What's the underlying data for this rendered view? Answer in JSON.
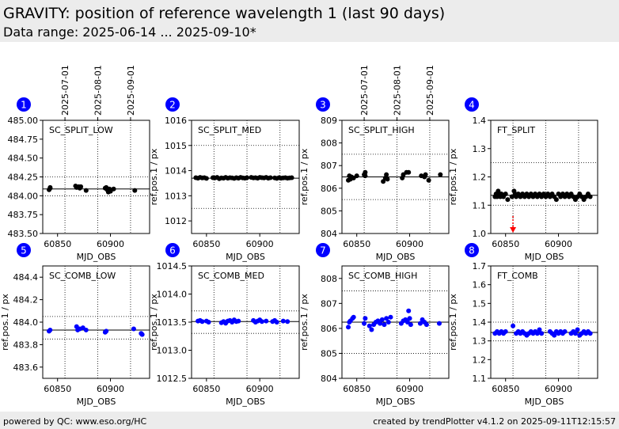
{
  "header": {
    "title": "GRAVITY: position of reference wavelength 1 (last 90 days)",
    "subtitle": "Data range: 2025-06-14 ... 2025-09-10*"
  },
  "footer": {
    "left": "powered by QC: www.eso.org/HC",
    "right": "created by trendPlotter v4.1.2 on 2025-09-11T12:15:57"
  },
  "date_axis": {
    "labels": [
      "2025-07-01",
      "2025-08-01",
      "2025-09-01"
    ],
    "mjd": [
      60857,
      60888,
      60919
    ]
  },
  "colors": {
    "black_points": "#000000",
    "blue_points": "#0000ff",
    "badge": "#0000ff",
    "outlier_arrow": "#ff0000"
  },
  "chart_data": [
    {
      "type": "scatter",
      "badge": "1",
      "label": "SC_SPLIT_LOW",
      "xlabel": "MJD_OBS",
      "ylabel": "",
      "xlim": [
        60836,
        60937
      ],
      "ylim": [
        483.5,
        485.0
      ],
      "yticks": [
        "483.50",
        "483.75",
        "484.00",
        "484.25",
        "484.50",
        "484.75",
        "485.00"
      ],
      "yticks_val": [
        483.5,
        483.75,
        484.0,
        484.25,
        484.5,
        484.75,
        485.0
      ],
      "xticks": [
        "60850",
        "60900"
      ],
      "xticks_val": [
        60850,
        60900
      ],
      "hlines_dotted": [
        484.0,
        484.25
      ],
      "hline_solid": 484.09,
      "point_color": "#000000",
      "show_dates": true,
      "points": [
        [
          60842,
          484.08
        ],
        [
          60843,
          484.11
        ],
        [
          60843,
          484.1
        ],
        [
          60867,
          484.13
        ],
        [
          60868,
          484.11
        ],
        [
          60870,
          484.12
        ],
        [
          60871,
          484.1
        ],
        [
          60872,
          484.12
        ],
        [
          60877,
          484.07
        ],
        [
          60895,
          484.1
        ],
        [
          60896,
          484.11
        ],
        [
          60897,
          484.08
        ],
        [
          60898,
          484.05
        ],
        [
          60899,
          484.07
        ],
        [
          60899,
          484.09
        ],
        [
          60900,
          484.06
        ],
        [
          60903,
          484.09
        ],
        [
          60923,
          484.07
        ]
      ]
    },
    {
      "type": "scatter",
      "badge": "2",
      "label": "SC_SPLIT_MED",
      "xlabel": "MJD_OBS",
      "ylabel": "ref.pos.1 / px",
      "xlim": [
        60836,
        60937
      ],
      "ylim": [
        1011.5,
        1016.0
      ],
      "yticks": [
        "1012",
        "1013",
        "1014",
        "1015",
        "1016"
      ],
      "yticks_val": [
        1012,
        1013,
        1014,
        1015,
        1016
      ],
      "xticks": [
        "60850",
        "60900"
      ],
      "xticks_val": [
        60850,
        60900
      ],
      "hlines_dotted": [
        1012.5,
        1015.0
      ],
      "hline_solid": 1013.7,
      "point_color": "#000000",
      "show_dates": false,
      "points": [
        [
          60840,
          1013.72
        ],
        [
          60842,
          1013.7
        ],
        [
          60844,
          1013.73
        ],
        [
          60846,
          1013.71
        ],
        [
          60848,
          1013.72
        ],
        [
          60850,
          1013.69
        ],
        [
          60856,
          1013.72
        ],
        [
          60858,
          1013.71
        ],
        [
          60860,
          1013.73
        ],
        [
          60862,
          1013.68
        ],
        [
          60864,
          1013.71
        ],
        [
          60866,
          1013.7
        ],
        [
          60868,
          1013.73
        ],
        [
          60870,
          1013.7
        ],
        [
          60872,
          1013.72
        ],
        [
          60874,
          1013.71
        ],
        [
          60876,
          1013.69
        ],
        [
          60878,
          1013.72
        ],
        [
          60880,
          1013.7
        ],
        [
          60882,
          1013.73
        ],
        [
          60884,
          1013.71
        ],
        [
          60886,
          1013.7
        ],
        [
          60888,
          1013.72
        ],
        [
          60892,
          1013.73
        ],
        [
          60894,
          1013.71
        ],
        [
          60896,
          1013.72
        ],
        [
          60898,
          1013.7
        ],
        [
          60900,
          1013.73
        ],
        [
          60902,
          1013.72
        ],
        [
          60904,
          1013.71
        ],
        [
          60906,
          1013.73
        ],
        [
          60908,
          1013.7
        ],
        [
          60910,
          1013.72
        ],
        [
          60914,
          1013.71
        ],
        [
          60916,
          1013.69
        ],
        [
          60918,
          1013.72
        ],
        [
          60920,
          1013.7
        ],
        [
          60922,
          1013.71
        ],
        [
          60924,
          1013.72
        ],
        [
          60926,
          1013.7
        ],
        [
          60928,
          1013.71
        ],
        [
          60930,
          1013.72
        ]
      ]
    },
    {
      "type": "scatter",
      "badge": "3",
      "label": "SC_SPLIT_HIGH",
      "xlabel": "MJD_OBS",
      "ylabel": "ref.pos.1 / px",
      "xlim": [
        60836,
        60937
      ],
      "ylim": [
        804.0,
        809.0
      ],
      "yticks": [
        "804",
        "805",
        "806",
        "807",
        "808",
        "809"
      ],
      "yticks_val": [
        804,
        805,
        806,
        807,
        808,
        809
      ],
      "xticks": [
        "60850",
        "60900"
      ],
      "xticks_val": [
        60850,
        60900
      ],
      "hlines_dotted": [
        805.5,
        807.5
      ],
      "hline_solid": 806.5,
      "point_color": "#000000",
      "show_dates": true,
      "points": [
        [
          60842,
          806.35
        ],
        [
          60843,
          806.55
        ],
        [
          60844,
          806.4
        ],
        [
          60845,
          806.5
        ],
        [
          60847,
          806.45
        ],
        [
          60850,
          806.55
        ],
        [
          60857,
          806.6
        ],
        [
          60858,
          806.7
        ],
        [
          60858,
          806.55
        ],
        [
          60875,
          806.3
        ],
        [
          60877,
          806.45
        ],
        [
          60878,
          806.6
        ],
        [
          60879,
          806.4
        ],
        [
          60893,
          806.45
        ],
        [
          60894,
          806.6
        ],
        [
          60897,
          806.7
        ],
        [
          60899,
          806.7
        ],
        [
          60911,
          806.55
        ],
        [
          60914,
          806.5
        ],
        [
          60915,
          806.6
        ],
        [
          60918,
          806.35
        ],
        [
          60929,
          806.6
        ]
      ]
    },
    {
      "type": "scatter",
      "badge": "4",
      "label": "FT_SPLIT",
      "xlabel": "MJD_OBS",
      "ylabel": "ref.pos.1 / px",
      "xlim": [
        60836,
        60937
      ],
      "ylim": [
        1.0,
        1.4
      ],
      "yticks": [
        "1.0",
        "1.1",
        "1.2",
        "1.3",
        "1.4"
      ],
      "yticks_val": [
        1.0,
        1.1,
        1.2,
        1.3,
        1.4
      ],
      "xticks": [
        "60850",
        "60900"
      ],
      "xticks_val": [
        60850,
        60900
      ],
      "hlines_dotted": [
        1.1,
        1.25
      ],
      "hline_solid": 1.135,
      "point_color": "#000000",
      "show_dates": false,
      "outlier_x": 60857,
      "points": [
        [
          60840,
          1.13
        ],
        [
          60841,
          1.14
        ],
        [
          60842,
          1.13
        ],
        [
          60843,
          1.15
        ],
        [
          60844,
          1.14
        ],
        [
          60845,
          1.13
        ],
        [
          60846,
          1.14
        ],
        [
          60848,
          1.13
        ],
        [
          60850,
          1.14
        ],
        [
          60852,
          1.12
        ],
        [
          60856,
          1.13
        ],
        [
          60858,
          1.15
        ],
        [
          60859,
          1.14
        ],
        [
          60860,
          1.13
        ],
        [
          60862,
          1.14
        ],
        [
          60864,
          1.13
        ],
        [
          60866,
          1.14
        ],
        [
          60868,
          1.13
        ],
        [
          60870,
          1.14
        ],
        [
          60872,
          1.13
        ],
        [
          60874,
          1.14
        ],
        [
          60876,
          1.13
        ],
        [
          60878,
          1.14
        ],
        [
          60880,
          1.13
        ],
        [
          60882,
          1.14
        ],
        [
          60884,
          1.13
        ],
        [
          60886,
          1.14
        ],
        [
          60888,
          1.13
        ],
        [
          60890,
          1.14
        ],
        [
          60892,
          1.13
        ],
        [
          60894,
          1.14
        ],
        [
          60896,
          1.13
        ],
        [
          60898,
          1.12
        ],
        [
          60900,
          1.14
        ],
        [
          60902,
          1.13
        ],
        [
          60904,
          1.14
        ],
        [
          60906,
          1.13
        ],
        [
          60908,
          1.14
        ],
        [
          60910,
          1.13
        ],
        [
          60912,
          1.14
        ],
        [
          60914,
          1.13
        ],
        [
          60916,
          1.12
        ],
        [
          60918,
          1.13
        ],
        [
          60920,
          1.14
        ],
        [
          60922,
          1.13
        ],
        [
          60924,
          1.12
        ],
        [
          60926,
          1.13
        ],
        [
          60928,
          1.14
        ],
        [
          60930,
          1.13
        ]
      ]
    },
    {
      "type": "scatter",
      "badge": "5",
      "label": "SC_COMB_LOW",
      "xlabel": "MJD_OBS",
      "ylabel": "ref.pos.1 / px",
      "xlim": [
        60836,
        60937
      ],
      "ylim": [
        483.5,
        484.5
      ],
      "yticks": [
        "483.6",
        "483.8",
        "484.0",
        "484.2",
        "484.4"
      ],
      "yticks_val": [
        483.6,
        483.8,
        484.0,
        484.2,
        484.4
      ],
      "xticks": [
        "60850",
        "60900"
      ],
      "xticks_val": [
        60850,
        60900
      ],
      "hlines_dotted": [
        483.85,
        484.05
      ],
      "hline_solid": 483.93,
      "point_color": "#0000ff",
      "show_dates": false,
      "points": [
        [
          60842,
          483.92
        ],
        [
          60843,
          483.93
        ],
        [
          60868,
          483.96
        ],
        [
          60869,
          483.93
        ],
        [
          60871,
          483.94
        ],
        [
          60874,
          483.95
        ],
        [
          60877,
          483.93
        ],
        [
          60895,
          483.91
        ],
        [
          60896,
          483.92
        ],
        [
          60922,
          483.94
        ],
        [
          60929,
          483.9
        ],
        [
          60930,
          483.89
        ]
      ]
    },
    {
      "type": "scatter",
      "badge": "6",
      "label": "SC_COMB_MED",
      "xlabel": "MJD_OBS",
      "ylabel": "ref.pos.1 / px",
      "xlim": [
        60836,
        60937
      ],
      "ylim": [
        1012.5,
        1014.5
      ],
      "yticks": [
        "1012.5",
        "1013.0",
        "1013.5",
        "1014.0",
        "1014.5"
      ],
      "yticks_val": [
        1012.5,
        1013.0,
        1013.5,
        1014.0,
        1014.5
      ],
      "xticks": [
        "60850",
        "60900"
      ],
      "xticks_val": [
        60850,
        60900
      ],
      "hlines_dotted": [
        1013.3,
        1013.7
      ],
      "hline_solid": 1013.51,
      "point_color": "#0000ff",
      "show_dates": false,
      "points": [
        [
          60842,
          1013.52
        ],
        [
          60844,
          1013.53
        ],
        [
          60846,
          1013.51
        ],
        [
          60850,
          1013.52
        ],
        [
          60852,
          1013.5
        ],
        [
          60864,
          1013.49
        ],
        [
          60866,
          1013.51
        ],
        [
          60868,
          1013.48
        ],
        [
          60870,
          1013.52
        ],
        [
          60872,
          1013.53
        ],
        [
          60874,
          1013.5
        ],
        [
          60876,
          1013.54
        ],
        [
          60878,
          1013.51
        ],
        [
          60880,
          1013.52
        ],
        [
          60894,
          1013.53
        ],
        [
          60896,
          1013.5
        ],
        [
          60898,
          1013.52
        ],
        [
          60900,
          1013.54
        ],
        [
          60902,
          1013.51
        ],
        [
          60906,
          1013.52
        ],
        [
          60912,
          1013.51
        ],
        [
          60914,
          1013.53
        ],
        [
          60916,
          1013.5
        ],
        [
          60922,
          1013.52
        ],
        [
          60926,
          1013.51
        ]
      ]
    },
    {
      "type": "scatter",
      "badge": "7",
      "label": "SC_COMB_HIGH",
      "xlabel": "MJD_OBS",
      "ylabel": "ref.pos.1 / px",
      "xlim": [
        60836,
        60937
      ],
      "ylim": [
        804.0,
        808.5
      ],
      "yticks": [
        "804",
        "805",
        "806",
        "807",
        "808"
      ],
      "yticks_val": [
        804,
        805,
        806,
        807,
        808
      ],
      "xticks": [
        "60850",
        "60900"
      ],
      "xticks_val": [
        60850,
        60900
      ],
      "hlines_dotted": [
        805.0,
        807.5
      ],
      "hline_solid": 806.25,
      "point_color": "#0000ff",
      "show_dates": false,
      "points": [
        [
          60842,
          806.05
        ],
        [
          60843,
          806.25
        ],
        [
          60844,
          806.3
        ],
        [
          60846,
          806.4
        ],
        [
          60847,
          806.45
        ],
        [
          60857,
          806.2
        ],
        [
          60858,
          806.4
        ],
        [
          60862,
          806.1
        ],
        [
          60864,
          805.95
        ],
        [
          60866,
          806.15
        ],
        [
          60868,
          806.25
        ],
        [
          60870,
          806.3
        ],
        [
          60872,
          806.2
        ],
        [
          60874,
          806.35
        ],
        [
          60876,
          806.15
        ],
        [
          60878,
          806.4
        ],
        [
          60880,
          806.25
        ],
        [
          60882,
          806.45
        ],
        [
          60892,
          806.2
        ],
        [
          60894,
          806.3
        ],
        [
          60896,
          806.35
        ],
        [
          60898,
          806.25
        ],
        [
          60899,
          806.7
        ],
        [
          60900,
          806.4
        ],
        [
          60901,
          806.15
        ],
        [
          60910,
          806.2
        ],
        [
          60912,
          806.35
        ],
        [
          60914,
          806.25
        ],
        [
          60916,
          806.15
        ],
        [
          60928,
          806.2
        ]
      ]
    },
    {
      "type": "scatter",
      "badge": "8",
      "label": "FT_COMB",
      "xlabel": "MJD_OBS",
      "ylabel": "ref.pos.1 / px",
      "xlim": [
        60836,
        60937
      ],
      "ylim": [
        1.1,
        1.7
      ],
      "yticks": [
        "1.1",
        "1.2",
        "1.3",
        "1.4",
        "1.5",
        "1.6",
        "1.7"
      ],
      "yticks_val": [
        1.1,
        1.2,
        1.3,
        1.4,
        1.5,
        1.6,
        1.7
      ],
      "xticks": [
        "60850",
        "60900"
      ],
      "xticks_val": [
        60850,
        60900
      ],
      "hlines_dotted": [
        1.3,
        1.4
      ],
      "hline_solid": 1.345,
      "point_color": "#0000ff",
      "show_dates": false,
      "points": [
        [
          60840,
          1.34
        ],
        [
          60842,
          1.35
        ],
        [
          60844,
          1.34
        ],
        [
          60846,
          1.35
        ],
        [
          60848,
          1.34
        ],
        [
          60850,
          1.35
        ],
        [
          60857,
          1.38
        ],
        [
          60860,
          1.34
        ],
        [
          60862,
          1.35
        ],
        [
          60864,
          1.34
        ],
        [
          60866,
          1.35
        ],
        [
          60868,
          1.34
        ],
        [
          60870,
          1.33
        ],
        [
          60872,
          1.34
        ],
        [
          60874,
          1.35
        ],
        [
          60876,
          1.34
        ],
        [
          60878,
          1.35
        ],
        [
          60880,
          1.34
        ],
        [
          60882,
          1.36
        ],
        [
          60884,
          1.34
        ],
        [
          60892,
          1.35
        ],
        [
          60894,
          1.34
        ],
        [
          60896,
          1.33
        ],
        [
          60898,
          1.35
        ],
        [
          60900,
          1.34
        ],
        [
          60902,
          1.35
        ],
        [
          60904,
          1.34
        ],
        [
          60906,
          1.35
        ],
        [
          60912,
          1.34
        ],
        [
          60914,
          1.35
        ],
        [
          60916,
          1.34
        ],
        [
          60918,
          1.36
        ],
        [
          60920,
          1.33
        ],
        [
          60922,
          1.34
        ],
        [
          60924,
          1.35
        ],
        [
          60926,
          1.34
        ],
        [
          60928,
          1.35
        ],
        [
          60930,
          1.34
        ]
      ]
    }
  ]
}
